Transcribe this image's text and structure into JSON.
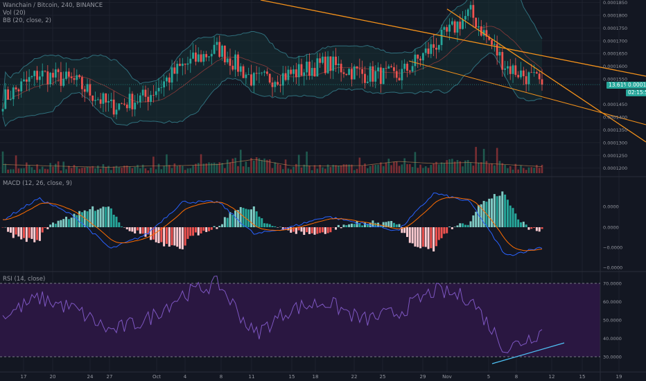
{
  "legends": {
    "price_title": "Wanchain / Bitcoin, 240, BINANCE",
    "volume": "Vol (20)",
    "bb": "BB (20, close, 2)",
    "macd": "MACD (12, 26, close, 9)",
    "rsi": "RSI (14, close)"
  },
  "price_tag": {
    "change": "13.61%",
    "price": "0.0001528",
    "countdown": "02:15:59"
  },
  "price_axis": [
    "0.0001850",
    "0.0001800",
    "0.0001750",
    "0.0001700",
    "0.0001650",
    "0.0001600",
    "0.0001550",
    "0.0001450",
    "0.0001400",
    "0.0001350",
    "0.0001300",
    "0.0001250",
    "0.0001200"
  ],
  "macd_axis": [
    "0.0000",
    "0.0000",
    "−0.0000",
    "−0.0000"
  ],
  "rsi_axis": [
    "70.0000",
    "60.0000",
    "50.0000",
    "40.0000",
    "30.0000"
  ],
  "time_axis": [
    "17",
    "20",
    "24",
    "27",
    "Oct",
    "4",
    "8",
    "11",
    "15",
    "18",
    "22",
    "25",
    "29",
    "Nov",
    "5",
    "8",
    "12",
    "15",
    "19"
  ],
  "colors": {
    "background": "#131722",
    "up": "#26a69a",
    "down": "#ef5350",
    "trendline": "#f7931a",
    "bollinger": "#2a5f6e",
    "macd_line": "#2962ff",
    "signal_line": "#ff6d00",
    "rsi_line": "#7e57c2",
    "rsi_band": "#2a1741",
    "divergence_line": "#4fc3f7"
  },
  "chart_data": [
    {
      "type": "line",
      "panel": "price",
      "x": [
        "17",
        "20",
        "24",
        "27",
        "Oct",
        "4",
        "8",
        "11",
        "15",
        "18",
        "22",
        "25",
        "29",
        "Nov",
        "5",
        "8"
      ],
      "y": [
        0.000147,
        0.000157,
        0.000154,
        0.000144,
        0.000148,
        0.00016,
        0.000167,
        0.000154,
        0.000157,
        0.000161,
        0.000157,
        0.000156,
        0.000168,
        0.000181,
        0.00016,
        0.000153
      ],
      "ylim": [
        0.000118,
        0.000186
      ],
      "last_price": 0.0001528,
      "last_change_pct": 13.61
    },
    {
      "type": "bar",
      "panel": "volume",
      "x": [
        "17",
        "20",
        "24",
        "27",
        "Oct",
        "4",
        "8",
        "11",
        "15",
        "18",
        "22",
        "25",
        "29",
        "Nov",
        "5",
        "8"
      ],
      "values": [
        0.35,
        0.3,
        0.25,
        0.22,
        0.28,
        0.3,
        0.35,
        0.6,
        0.3,
        0.28,
        0.3,
        0.5,
        0.4,
        0.45,
        0.35,
        0.25
      ]
    },
    {
      "type": "line",
      "panel": "macd",
      "series": [
        {
          "name": "MACD",
          "values": [
            0.4,
            1.6,
            0.6,
            -1.2,
            -0.4,
            1.4,
            1.4,
            -0.4,
            0.0,
            0.6,
            0.2,
            -0.2,
            1.9,
            1.4,
            -1.6,
            -1.1
          ]
        },
        {
          "name": "Signal",
          "values": [
            0.0,
            1.2,
            0.8,
            -0.9,
            -0.5,
            0.9,
            1.2,
            -0.1,
            -0.1,
            0.4,
            0.3,
            0.0,
            1.4,
            1.3,
            -1.0,
            -1.2
          ]
        }
      ]
    },
    {
      "type": "line",
      "panel": "rsi",
      "x": [
        "17",
        "20",
        "24",
        "27",
        "Oct",
        "4",
        "8",
        "11",
        "15",
        "18",
        "22",
        "25",
        "29",
        "Nov",
        "5",
        "8"
      ],
      "y": [
        52,
        62,
        56,
        44,
        50,
        64,
        70,
        42,
        56,
        60,
        50,
        54,
        66,
        62,
        34,
        44
      ],
      "ylim": [
        25,
        75
      ]
    }
  ]
}
